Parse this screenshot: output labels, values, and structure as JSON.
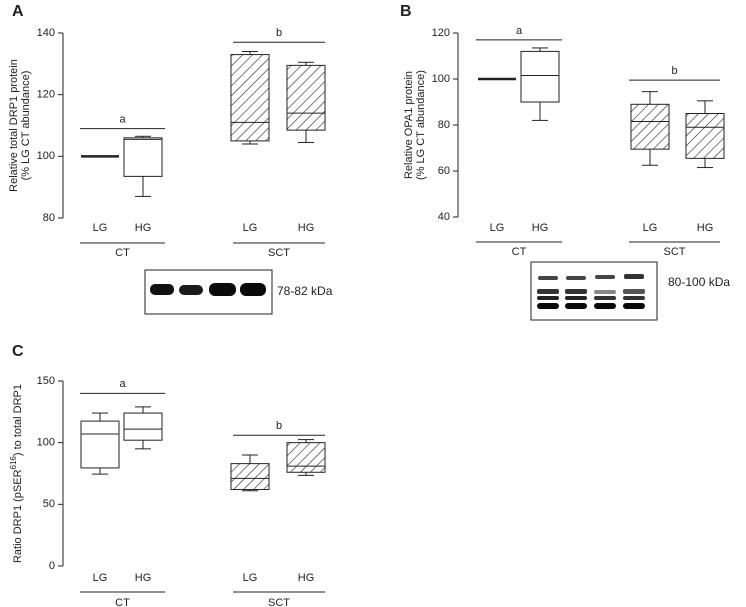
{
  "chart_data": [
    {
      "type": "box",
      "panel": "A",
      "ylabel": [
        [
          {
            "text": "Relative total DRP1 protein"
          }
        ],
        [
          {
            "text": "(% LG CT abundance)"
          }
        ]
      ],
      "ylim": [
        80,
        140
      ],
      "yticks": [
        80,
        100,
        120,
        140
      ],
      "blot_label": "78-82 kDa",
      "groups": [
        {
          "name": "CT",
          "hatched": false,
          "categories": [
            "LG",
            "HG"
          ],
          "min": [
            100,
            87
          ],
          "q1": [
            100,
            93.5
          ],
          "median": [
            100,
            105.5
          ],
          "q3": [
            100,
            106
          ],
          "max": [
            100,
            106.5
          ],
          "annotation": {
            "text": "a",
            "y": 109
          }
        },
        {
          "name": "SCT",
          "hatched": true,
          "categories": [
            "LG",
            "HG"
          ],
          "min": [
            104,
            104.5
          ],
          "q1": [
            105,
            108.5
          ],
          "median": [
            111,
            114
          ],
          "q3": [
            133,
            129.5
          ],
          "max": [
            134,
            130.5
          ],
          "annotation": {
            "text": "b",
            "y": 137
          }
        }
      ]
    },
    {
      "type": "box",
      "panel": "B",
      "ylabel": [
        [
          {
            "text": "Relative OPA1 protein"
          }
        ],
        [
          {
            "text": "(% LG CT abundance)"
          }
        ]
      ],
      "ylim": [
        40,
        120
      ],
      "yticks": [
        40,
        60,
        80,
        100,
        120
      ],
      "blot_label": "80-100 kDa",
      "groups": [
        {
          "name": "CT",
          "hatched": false,
          "categories": [
            "LG",
            "HG"
          ],
          "min": [
            100,
            82
          ],
          "q1": [
            100,
            90
          ],
          "median": [
            100,
            101.5
          ],
          "q3": [
            100,
            112
          ],
          "max": [
            100,
            113.5
          ],
          "annotation": {
            "text": "a",
            "y": 117
          }
        },
        {
          "name": "SCT",
          "hatched": true,
          "categories": [
            "LG",
            "HG"
          ],
          "min": [
            62.5,
            61.5
          ],
          "q1": [
            69.5,
            65.5
          ],
          "median": [
            81.5,
            79
          ],
          "q3": [
            89,
            85
          ],
          "max": [
            94.5,
            90.5
          ],
          "annotation": {
            "text": "b",
            "y": 99.5
          }
        }
      ]
    },
    {
      "type": "box",
      "panel": "C",
      "ylabel": [
        [
          {
            "text": "Ratio DRP1 (pSER"
          },
          {
            "text": "616",
            "sup": true
          },
          {
            "text": ") to total DRP1"
          }
        ]
      ],
      "ylim": [
        0,
        150
      ],
      "yticks": [
        0,
        50,
        100,
        150
      ],
      "groups": [
        {
          "name": "CT",
          "hatched": false,
          "categories": [
            "LG",
            "HG"
          ],
          "min": [
            74.5,
            95
          ],
          "q1": [
            79.5,
            102
          ],
          "median": [
            107,
            111
          ],
          "q3": [
            117.5,
            124
          ],
          "max": [
            124,
            129
          ],
          "annotation": {
            "text": "a",
            "y": 140
          }
        },
        {
          "name": "SCT",
          "hatched": true,
          "categories": [
            "LG",
            "HG"
          ],
          "min": [
            61,
            73.5
          ],
          "q1": [
            62,
            76
          ],
          "median": [
            71,
            81
          ],
          "q3": [
            83,
            100
          ],
          "max": [
            90,
            102.5
          ],
          "annotation": {
            "text": "b",
            "y": 106
          }
        }
      ]
    }
  ]
}
